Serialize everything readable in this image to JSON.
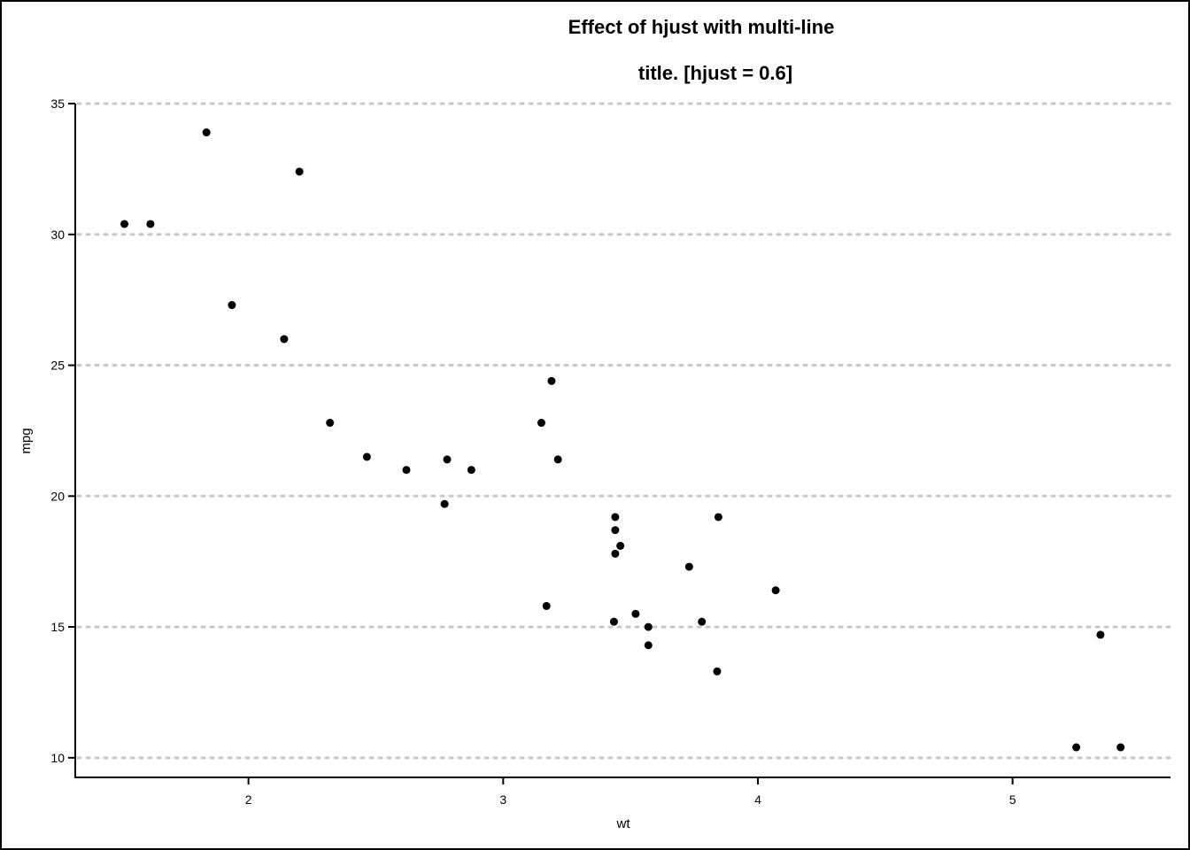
{
  "chart_data": {
    "type": "scatter",
    "title_lines": [
      "Effect of hjust with multi-line",
      "title. [hjust = 0.6]"
    ],
    "xlabel": "wt",
    "ylabel": "mpg",
    "xlim": [
      1.32,
      5.62
    ],
    "ylim": [
      9.25,
      35.0
    ],
    "x_ticks": [
      2,
      3,
      4,
      5
    ],
    "x_tick_labels": [
      "2",
      "3",
      "4",
      "5"
    ],
    "y_ticks": [
      10,
      15,
      20,
      25,
      30,
      35
    ],
    "y_tick_labels": [
      "10",
      "15",
      "20",
      "25",
      "30",
      "35"
    ],
    "grid": "horizontal-dotted",
    "points": [
      {
        "x": 1.513,
        "y": 30.4
      },
      {
        "x": 1.615,
        "y": 30.4
      },
      {
        "x": 1.835,
        "y": 33.9
      },
      {
        "x": 1.935,
        "y": 27.3
      },
      {
        "x": 2.14,
        "y": 26.0
      },
      {
        "x": 2.2,
        "y": 32.4
      },
      {
        "x": 2.32,
        "y": 22.8
      },
      {
        "x": 2.465,
        "y": 21.5
      },
      {
        "x": 2.62,
        "y": 21.0
      },
      {
        "x": 2.77,
        "y": 19.7
      },
      {
        "x": 2.78,
        "y": 21.4
      },
      {
        "x": 2.875,
        "y": 21.0
      },
      {
        "x": 3.15,
        "y": 22.8
      },
      {
        "x": 3.17,
        "y": 15.8
      },
      {
        "x": 3.19,
        "y": 24.4
      },
      {
        "x": 3.215,
        "y": 21.4
      },
      {
        "x": 3.435,
        "y": 15.2
      },
      {
        "x": 3.44,
        "y": 18.7
      },
      {
        "x": 3.44,
        "y": 19.2
      },
      {
        "x": 3.44,
        "y": 17.8
      },
      {
        "x": 3.46,
        "y": 18.1
      },
      {
        "x": 3.52,
        "y": 15.5
      },
      {
        "x": 3.57,
        "y": 15.0
      },
      {
        "x": 3.57,
        "y": 14.3
      },
      {
        "x": 3.73,
        "y": 17.3
      },
      {
        "x": 3.78,
        "y": 15.2
      },
      {
        "x": 3.84,
        "y": 13.3
      },
      {
        "x": 3.845,
        "y": 19.2
      },
      {
        "x": 4.07,
        "y": 16.4
      },
      {
        "x": 5.25,
        "y": 10.4
      },
      {
        "x": 5.345,
        "y": 14.7
      },
      {
        "x": 5.424,
        "y": 10.4
      }
    ]
  }
}
